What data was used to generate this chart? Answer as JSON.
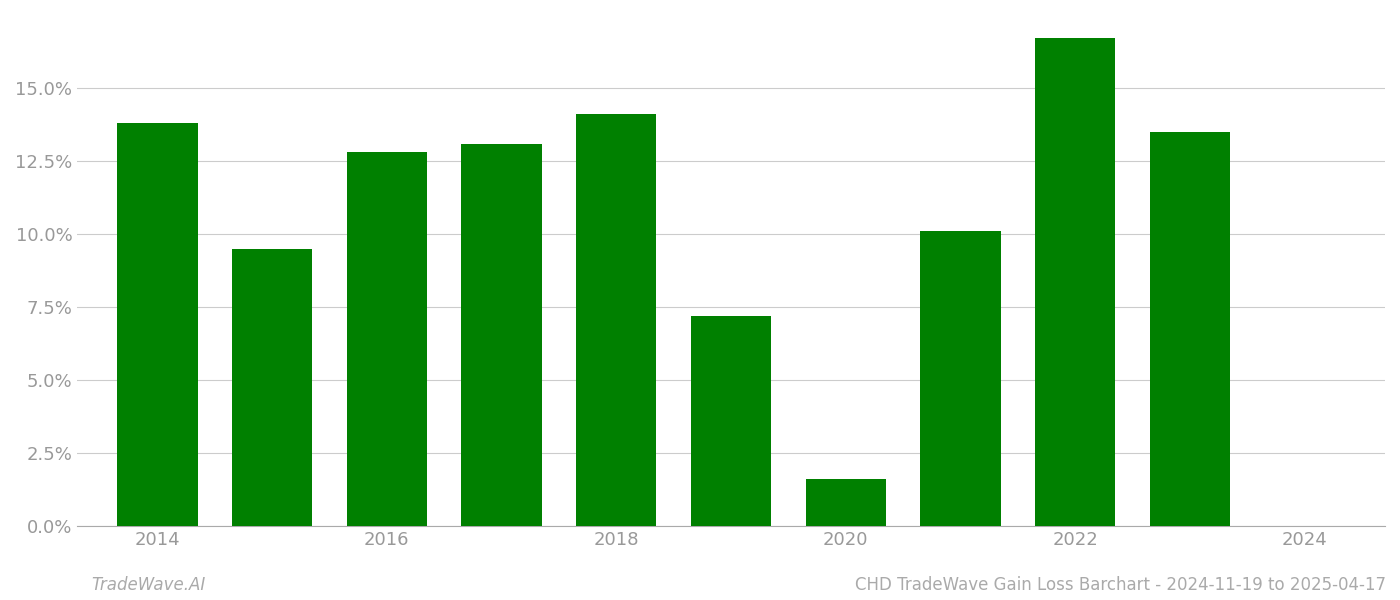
{
  "years": [
    2014,
    2015,
    2016,
    2017,
    2018,
    2019,
    2020,
    2021,
    2022,
    2023
  ],
  "values": [
    0.138,
    0.095,
    0.128,
    0.131,
    0.141,
    0.072,
    0.016,
    0.101,
    0.167,
    0.135
  ],
  "bar_color": "#008000",
  "background_color": "#ffffff",
  "grid_color": "#cccccc",
  "axis_color": "#aaaaaa",
  "tick_label_color": "#999999",
  "footer_left": "TradeWave.AI",
  "footer_right": "CHD TradeWave Gain Loss Barchart - 2024-11-19 to 2025-04-17",
  "footer_color": "#aaaaaa",
  "footer_fontsize": 12,
  "ylim": [
    0,
    0.175
  ],
  "yticks": [
    0.0,
    0.025,
    0.05,
    0.075,
    0.1,
    0.125,
    0.15
  ],
  "xlim": [
    2013.3,
    2024.7
  ],
  "xticks": [
    2014,
    2016,
    2018,
    2020,
    2022,
    2024
  ],
  "bar_width": 0.7
}
